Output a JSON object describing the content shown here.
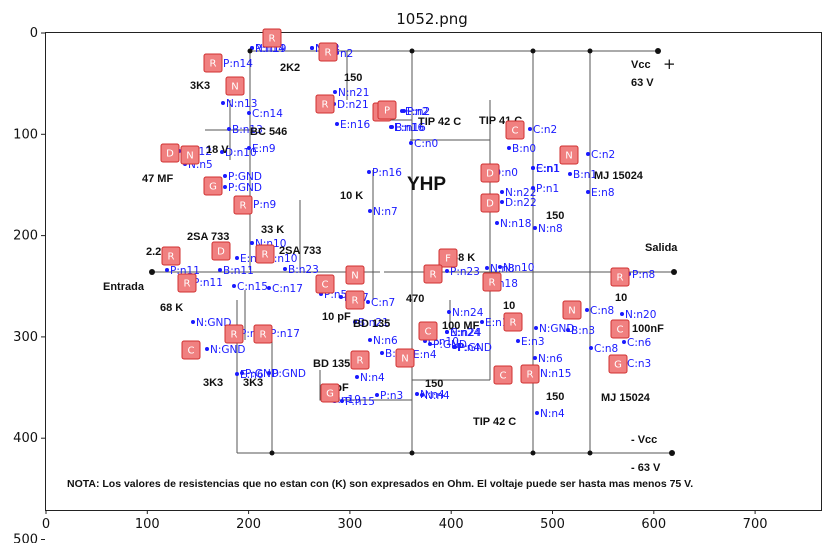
{
  "title": "1052.png",
  "axes": {
    "x_ticks": [
      "0",
      "100",
      "200",
      "300",
      "400",
      "500",
      "600",
      "700"
    ],
    "y_ticks": [
      "0",
      "100",
      "200",
      "300",
      "400",
      "500"
    ]
  },
  "colors": {
    "tag_fill": "#f08080",
    "tag_stroke": "#d03030",
    "box_stroke": "#e02020",
    "annotation": "#1a1aff",
    "wire": "#555555"
  },
  "schematic": {
    "heading": "YHP",
    "supplies": {
      "vcc_label": "Vcc",
      "vcc_value": "63 V",
      "vee_label": "- Vcc",
      "vee_value": "- 63 V",
      "plus_symbol": "+"
    },
    "ports": {
      "input": "Entrada",
      "output": "Salida"
    },
    "part_labels": [
      "3K3",
      "2K2",
      "150",
      "BC 546",
      "47 MF",
      "18 V",
      "TIP 42 C",
      "TIP 41 C",
      "MJ 15024",
      "10 K",
      "150",
      "33 K",
      "2SA 733",
      "2.2 MF",
      "2SA 733",
      "68 K",
      "10",
      "68 K",
      "470",
      "10 pF",
      "BD 135",
      "100 MF",
      "10",
      "100nF",
      "BD 135",
      "10 pF",
      "3K3",
      "3K3",
      "150",
      "TIP 42 C",
      "150",
      "MJ 15024"
    ],
    "note": "NOTA: Los valores de resistencias que no estan con (K) son expresados en Ohm. El voltaje puede ser hasta mas menos 75 V."
  },
  "tags": [
    "R",
    "R",
    "R",
    "N",
    "R",
    "D",
    "C",
    "D",
    "G",
    "P",
    "N",
    "N",
    "D",
    "R",
    "D",
    "D",
    "F",
    "R",
    "C",
    "R",
    "R",
    "R",
    "R",
    "R",
    "N",
    "R",
    "C",
    "C",
    "N",
    "R",
    "R",
    "C",
    "G",
    "N",
    "R",
    "C",
    "G",
    "R",
    "R"
  ],
  "annotations": [
    "P:n14",
    "N:n2",
    "P:n14",
    "n2",
    "N:n21",
    "N:n13",
    "C:n14",
    "D:n21",
    "E:n16",
    "P:n2",
    "E:n16",
    "E:n2",
    "C:n2",
    "B:n13",
    "E:n9",
    "P:n12",
    "D:n10",
    "B:n16",
    "C:n0",
    "B:n0",
    "C:n2",
    "C:n1",
    "N:n5",
    "P:n16",
    "P:GND",
    "D:n0",
    "E:n1",
    "B:n1",
    "E:n8",
    "P:GND",
    "N:n22",
    "P:n1",
    "D:n22",
    "P:n9",
    "N:n7",
    "N:n18",
    "N:n8",
    "N:n10",
    "E:n10",
    "P:n11",
    "B:n11",
    "P:n11",
    "N:n10",
    "B:n23",
    "P:n8",
    "N:n8",
    "P:n23",
    "N:n10",
    "P:n18",
    "C:n15",
    "C:n17",
    "P:n5",
    "N:n7",
    "C:n7",
    "N:n24",
    "N:n20",
    "C:n8",
    "E:n19",
    "B:n3",
    "B:n21",
    "N:n24",
    "N:GND",
    "P:n15",
    "P:n17",
    "N:n6",
    "E:n24",
    "C:n10",
    "P:GND",
    "N:GND",
    "P:GND",
    "C:n6",
    "N:GND",
    "C:n8",
    "E:n3",
    "B:n19",
    "E:n4",
    "N:n6",
    "E:n6",
    "C:n3",
    "P:n4",
    "P:GND",
    "P:GND",
    "N:n4",
    "N:n15",
    "P:n3",
    "N:n4",
    "C:n19",
    "N:n4",
    "P:n15",
    "N:n4",
    "N:n19",
    "N:n4"
  ]
}
